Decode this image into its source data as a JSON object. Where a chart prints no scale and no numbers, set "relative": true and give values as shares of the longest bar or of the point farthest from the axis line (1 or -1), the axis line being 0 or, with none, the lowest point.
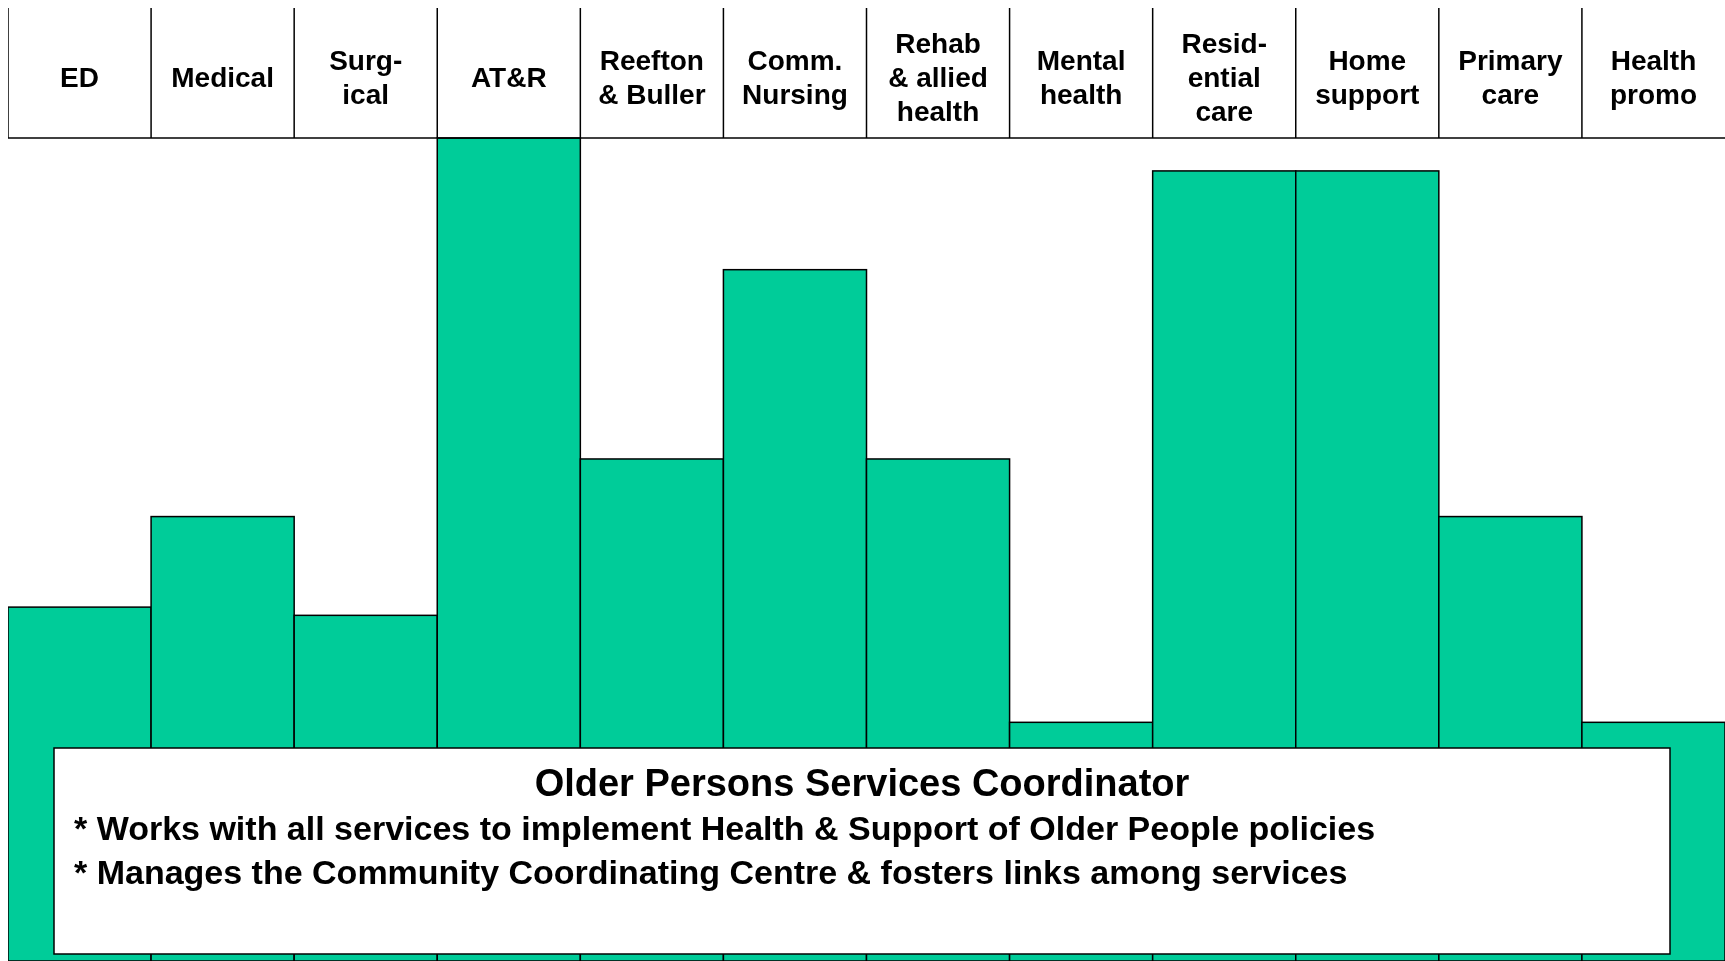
{
  "chart_data": {
    "type": "bar",
    "relative": true,
    "color": "#00cc99",
    "categories": [
      "ED",
      "Medical",
      "Surg-\nical",
      "AT&R",
      "Reefton\n& Buller",
      "Comm.\nNursing",
      "Rehab\n& allied\nhealth",
      "Mental\nhealth",
      "Resid-\nential\ncare",
      "Home\nsupport",
      "Primary\ncare",
      "Health\npromo"
    ],
    "values": [
      0.43,
      0.54,
      0.42,
      1,
      0.61,
      0.84,
      0.61,
      0.29,
      0.96,
      0.96,
      0.54,
      0.29
    ],
    "annotations": [
      "Older Persons Services Coordinator",
      "*  Works with all services to implement Health & Support of Older People policies",
      "*  Manages the Community Coordinating Centre & fosters links among services"
    ]
  }
}
